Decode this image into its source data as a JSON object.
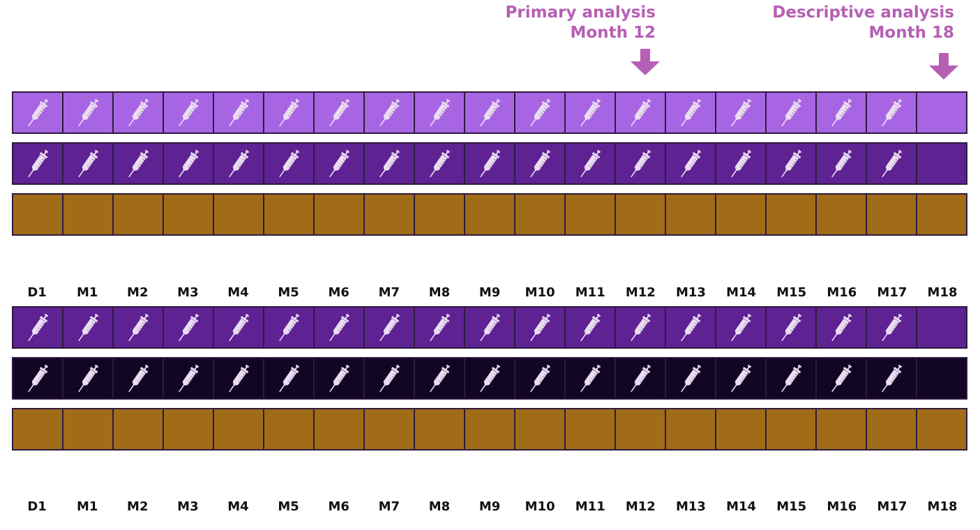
{
  "callouts": {
    "primary": {
      "line1": "Primary analysis",
      "line2": "Month 12"
    },
    "descriptive": {
      "line1": "Descriptive analysis",
      "line2": "Month 18"
    }
  },
  "timepoints": [
    "D1",
    "M1",
    "M2",
    "M3",
    "M4",
    "M5",
    "M6",
    "M7",
    "M8",
    "M9",
    "M10",
    "M11",
    "M12",
    "M13",
    "M14",
    "M15",
    "M16",
    "M17",
    "M18"
  ],
  "rows": [
    {
      "color": "#a865e3",
      "injections": 18
    },
    {
      "color": "#5e2293",
      "injections": 18
    },
    {
      "color": "#a06c18",
      "injections": 0
    },
    {
      "color": "#5e2293",
      "injections": 18
    },
    {
      "color": "#120625",
      "injections": 18
    },
    {
      "color": "#a06c18",
      "injections": 0
    }
  ],
  "icon": "syringe-icon",
  "icon_color": "#ecdcf3",
  "accent_color": "#b65fb4"
}
